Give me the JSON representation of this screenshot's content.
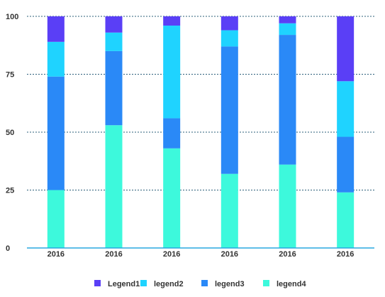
{
  "chart_data": {
    "type": "bar",
    "stacked": true,
    "categories": [
      "2016",
      "2016",
      "2016",
      "2016",
      "2016",
      "2016"
    ],
    "series": [
      {
        "name": "legend4",
        "color": "#3df9dc",
        "values": [
          25,
          53,
          43,
          32,
          36,
          24
        ]
      },
      {
        "name": "legend3",
        "color": "#2a89f7",
        "values": [
          49,
          32,
          13,
          55,
          56,
          24
        ]
      },
      {
        "name": "legend2",
        "color": "#1fd3ff",
        "values": [
          15,
          8,
          40,
          7,
          5,
          24
        ]
      },
      {
        "name": "Legend1",
        "color": "#5a3ff6",
        "values": [
          11,
          7,
          4,
          6,
          3,
          28
        ]
      }
    ],
    "legend_order": [
      "Legend1",
      "legend2",
      "legend3",
      "legend4"
    ],
    "ylim": [
      0,
      100
    ],
    "yticks": [
      "0",
      "25",
      "50",
      "75",
      "100"
    ],
    "grid": true,
    "grid_style": "dotted",
    "legend_position": "bottom",
    "title": "",
    "xlabel": "",
    "ylabel": ""
  }
}
